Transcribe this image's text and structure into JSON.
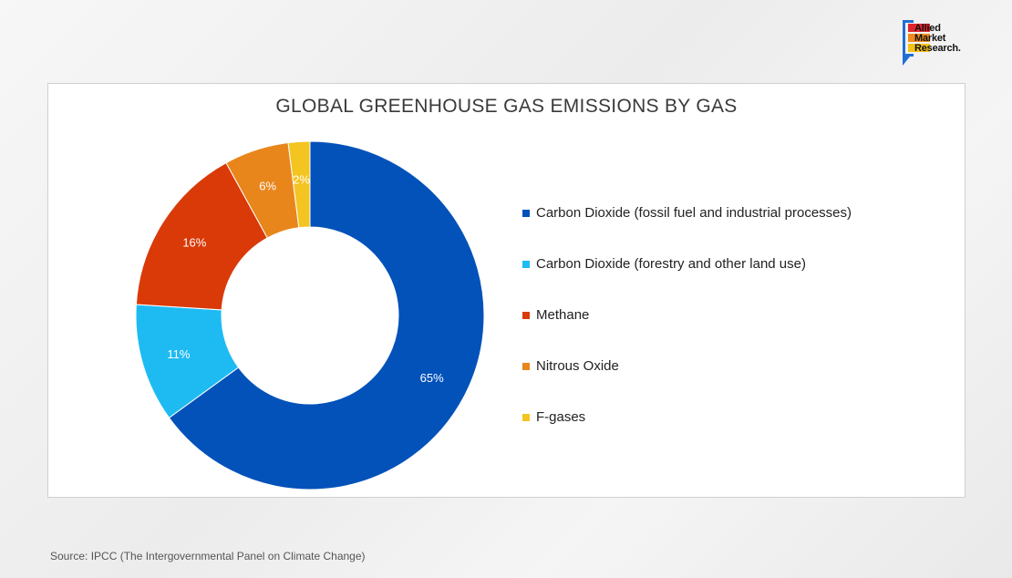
{
  "brand": {
    "logo_line1": "Allied",
    "logo_line2": "Market",
    "logo_line3": "Research.",
    "colors": {
      "red": "#e0262c",
      "orange": "#f08a1c",
      "yellow": "#f5c21a",
      "blue": "#1f6fd6"
    }
  },
  "source": "Source: IPCC (The Intergovernmental Panel on Climate Change)",
  "chart_data": {
    "type": "pie",
    "donut": true,
    "title": "GLOBAL GREENHOUSE GAS EMISSIONS BY GAS",
    "legend_position": "right",
    "series": [
      {
        "name": "Carbon Dioxide (fossil fuel and industrial processes)",
        "value": 65,
        "label": "65%",
        "color": "#0352b9"
      },
      {
        "name": "Carbon Dioxide (forestry and other land use)",
        "value": 11,
        "label": "11%",
        "color": "#1ebbf2"
      },
      {
        "name": "Methane",
        "value": 16,
        "label": "16%",
        "color": "#d93a08"
      },
      {
        "name": "Nitrous Oxide",
        "value": 6,
        "label": "6%",
        "color": "#e8861c"
      },
      {
        "name": "F-gases",
        "value": 2,
        "label": "2%",
        "color": "#f4c421"
      }
    ]
  }
}
